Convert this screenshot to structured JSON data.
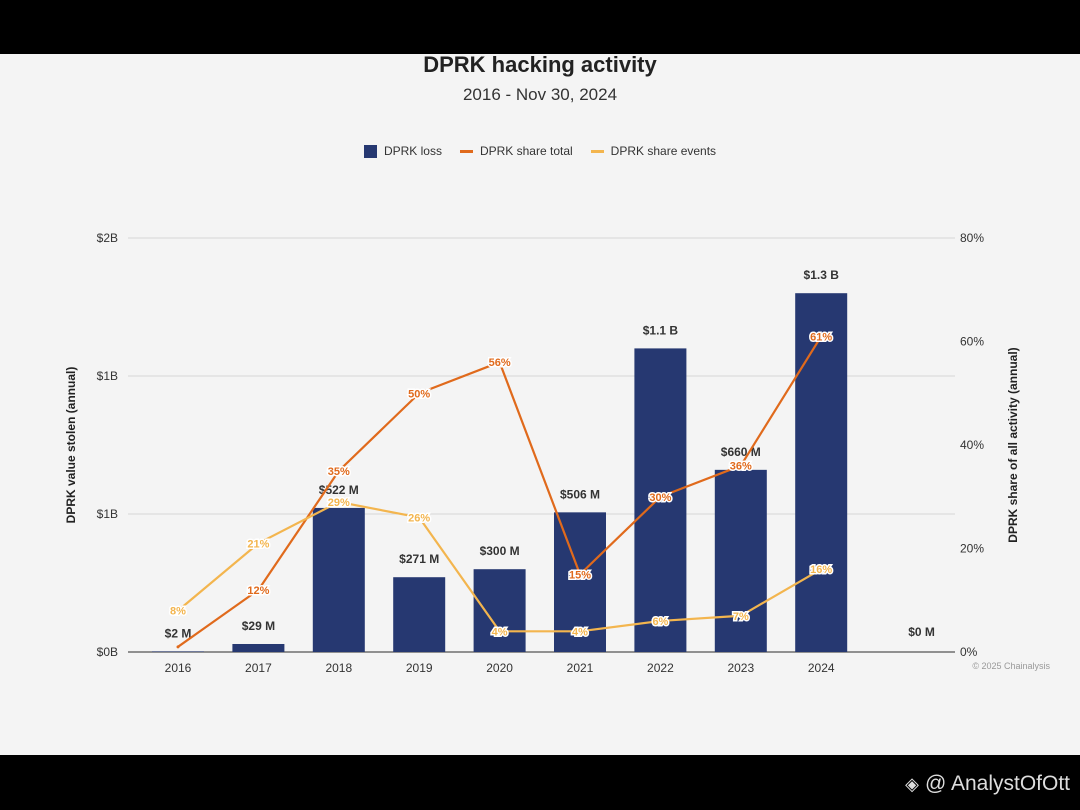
{
  "chart_data": {
    "type": "bar",
    "title": "DPRK hacking activity",
    "subtitle": "2016 - Nov 30, 2024",
    "categories": [
      "2016",
      "2017",
      "2018",
      "2019",
      "2020",
      "2021",
      "2022",
      "2023",
      "2024"
    ],
    "y_left": {
      "label": "DPRK value stolen (annual)",
      "tick_labels": [
        "$0B",
        "$1B",
        "$1B",
        "$2B"
      ],
      "range": [
        0,
        1.5
      ]
    },
    "y_right": {
      "label": "DPRK share of all activity (annual)",
      "tick_labels": [
        "0%",
        "20%",
        "40%",
        "60%",
        "80%"
      ],
      "range": [
        0,
        80
      ]
    },
    "series": [
      {
        "name": "DPRK loss",
        "kind": "bar",
        "axis": "left",
        "color": "#263871",
        "values": [
          0.002,
          0.029,
          0.522,
          0.271,
          0.3,
          0.506,
          1.1,
          0.66,
          1.3
        ],
        "labels": [
          "$2  M",
          "$29  M",
          "$522  M",
          "$271  M",
          "$300  M",
          "$506  M",
          "$1.1 B",
          "$660  M",
          "$1.3 B"
        ]
      },
      {
        "name": "DPRK share total",
        "kind": "line",
        "axis": "right",
        "color": "#e06a1c",
        "values": [
          1,
          12,
          35,
          50,
          56,
          15,
          30,
          36,
          61
        ],
        "labels": [
          "",
          "12%",
          "35%",
          "50%",
          "56%",
          "15%",
          "30%",
          "36%",
          "61%"
        ]
      },
      {
        "name": "DPRK share events",
        "kind": "line",
        "axis": "right",
        "color": "#f3b54e",
        "values": [
          8,
          21,
          29,
          26,
          4,
          4,
          6,
          7,
          16
        ],
        "labels": [
          "8%",
          "21%",
          "29%",
          "26%",
          "4%",
          "4%",
          "6%",
          "7%",
          "16%"
        ]
      }
    ],
    "extra_label": "$0  M",
    "legend_position": "top-center",
    "grid": true
  },
  "footer": {
    "copyright": "© 2025 Chainalysis"
  },
  "watermark": {
    "text": "@ AnalystOfOtt"
  }
}
